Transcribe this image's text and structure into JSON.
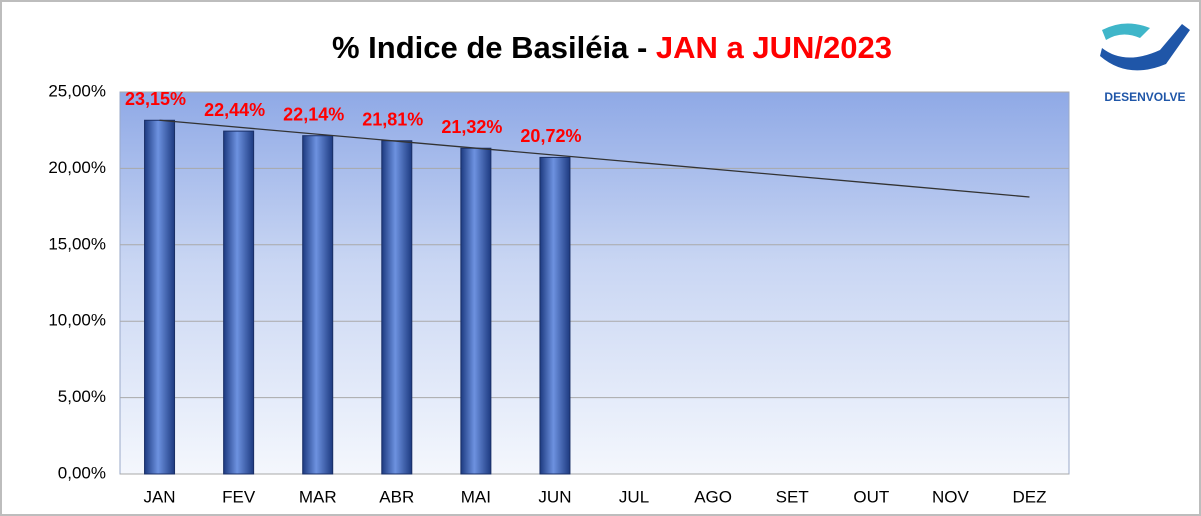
{
  "chart_data": {
    "type": "bar",
    "title": "% Indice de Basiléia - ",
    "title_highlight": "JAN a JUN/2023",
    "logo": "DESENVOLVE",
    "categories": [
      "JAN",
      "FEV",
      "MAR",
      "ABR",
      "MAI",
      "JUN",
      "JUL",
      "AGO",
      "SET",
      "OUT",
      "NOV",
      "DEZ"
    ],
    "values": [
      23.15,
      22.44,
      22.14,
      21.81,
      21.32,
      20.72,
      null,
      null,
      null,
      null,
      null,
      null
    ],
    "value_labels": [
      "23,15%",
      "22,44%",
      "22,14%",
      "21,81%",
      "21,32%",
      "20,72%",
      null,
      null,
      null,
      null,
      null,
      null
    ],
    "color": "#3b62b8",
    "label_color": "#ff0000",
    "trendline": [
      23.15,
      18.13
    ],
    "ylim": [
      0,
      25
    ],
    "yticks": [
      {
        "value": 0,
        "label": "0,00%"
      },
      {
        "value": 5,
        "label": "5,00%"
      },
      {
        "value": 10,
        "label": "10,00%"
      },
      {
        "value": 15,
        "label": "15,00%"
      },
      {
        "value": 20,
        "label": "20,00%"
      },
      {
        "value": 25,
        "label": "25,00%"
      }
    ],
    "grid": true
  }
}
